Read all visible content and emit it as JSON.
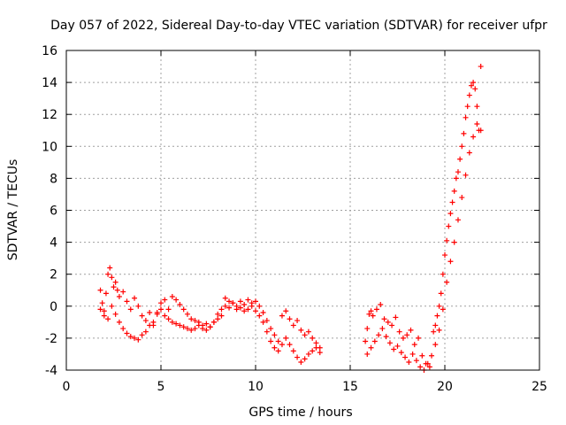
{
  "chart_data": {
    "type": "scatter",
    "title": "Day 057 of 2022, Sidereal Day-to-day VTEC variation (SDTVAR) for receiver ufpr",
    "xlabel": "GPS time / hours",
    "ylabel": "SDTVAR / TECUs",
    "xlim": [
      0,
      25
    ],
    "ylim": [
      -4,
      16
    ],
    "xticks": [
      0,
      5,
      10,
      15,
      20,
      25
    ],
    "yticks": [
      -4,
      -2,
      0,
      2,
      4,
      6,
      8,
      10,
      12,
      14,
      16
    ],
    "grid": true,
    "marker": "+",
    "color": "#ff0000",
    "series": [
      {
        "name": "SDTVAR",
        "x": [
          1.8,
          1.9,
          2.0,
          2.1,
          2.2,
          2.3,
          2.4,
          2.5,
          2.6,
          2.7,
          2.8,
          3.0,
          3.2,
          3.4,
          3.6,
          3.8,
          4.0,
          4.2,
          4.4,
          4.6,
          4.8,
          5.0,
          5.2,
          5.4,
          5.6,
          5.8,
          6.0,
          6.2,
          6.4,
          6.6,
          6.8,
          7.0,
          7.2,
          7.4,
          7.6,
          7.8,
          8.0,
          8.2,
          8.4,
          8.6,
          8.8,
          9.0,
          9.2,
          9.4,
          9.6,
          9.8,
          10.0,
          10.2,
          10.4,
          10.6,
          10.8,
          11.0,
          11.2,
          11.4,
          11.6,
          11.8,
          12.0,
          12.2,
          12.4,
          12.6,
          12.8,
          13.0,
          13.2,
          13.4,
          15.8,
          15.9,
          16.0,
          16.1,
          16.2,
          16.4,
          16.6,
          16.8,
          17.0,
          17.2,
          17.4,
          17.6,
          17.8,
          18.0,
          18.2,
          18.4,
          18.6,
          18.8,
          19.0,
          19.2,
          19.4,
          19.5,
          19.6,
          19.7,
          19.8,
          19.9,
          20.0,
          20.1,
          20.2,
          20.3,
          20.4,
          20.5,
          20.6,
          20.7,
          20.8,
          20.9,
          21.0,
          21.1,
          21.2,
          21.3,
          21.4,
          21.5,
          21.6,
          21.7,
          21.8,
          21.9,
          1.8,
          2.0,
          2.2,
          2.4,
          2.6,
          2.8,
          3.0,
          3.2,
          3.4,
          3.6,
          3.8,
          4.0,
          4.2,
          4.4,
          4.6,
          4.8,
          5.0,
          5.2,
          5.4,
          5.6,
          5.8,
          6.0,
          6.2,
          6.4,
          6.6,
          6.8,
          7.0,
          7.2,
          7.4,
          7.6,
          7.8,
          8.0,
          8.2,
          8.4,
          8.6,
          8.8,
          9.0,
          9.2,
          9.4,
          9.6,
          9.8,
          10.0,
          10.2,
          10.4,
          10.6,
          10.8,
          11.0,
          11.2,
          11.4,
          11.6,
          11.8,
          12.0,
          12.2,
          12.4,
          12.6,
          12.8,
          13.0,
          13.2,
          13.4,
          15.9,
          16.1,
          16.3,
          16.5,
          16.7,
          16.9,
          17.1,
          17.3,
          17.5,
          17.7,
          17.9,
          18.1,
          18.3,
          18.5,
          18.7,
          18.9,
          19.1,
          19.3,
          19.5,
          19.7,
          19.9,
          20.1,
          20.3,
          20.5,
          20.7,
          20.9,
          21.1,
          21.3,
          21.5,
          21.7,
          21.9
        ],
        "y": [
          1.0,
          0.2,
          -0.3,
          0.8,
          2.0,
          2.4,
          1.8,
          1.2,
          1.5,
          1.0,
          0.6,
          0.9,
          0.3,
          -0.2,
          0.5,
          0.0,
          -0.6,
          -0.9,
          -0.4,
          -1.2,
          -0.5,
          0.2,
          0.4,
          -0.2,
          0.6,
          0.4,
          0.1,
          -0.2,
          -0.5,
          -0.8,
          -0.9,
          -1.0,
          -1.2,
          -1.1,
          -1.3,
          -1.0,
          -0.8,
          -0.6,
          0.5,
          0.3,
          0.2,
          0.0,
          0.3,
          0.1,
          0.4,
          0.2,
          0.3,
          0.0,
          -0.4,
          -0.9,
          -1.4,
          -1.8,
          -2.2,
          -0.6,
          -0.3,
          -0.8,
          -1.2,
          -0.9,
          -1.5,
          -1.8,
          -1.6,
          -2.0,
          -2.3,
          -2.6,
          -2.2,
          -1.4,
          -0.5,
          -0.3,
          -0.6,
          -0.2,
          0.1,
          -0.8,
          -1.0,
          -1.2,
          -0.7,
          -1.6,
          -2.0,
          -1.8,
          -1.5,
          -2.4,
          -2.0,
          -3.1,
          -3.6,
          -3.8,
          -1.6,
          -1.2,
          -0.6,
          0.0,
          0.8,
          2.0,
          3.2,
          4.1,
          5.0,
          5.8,
          6.5,
          7.2,
          8.0,
          8.4,
          9.2,
          10.0,
          10.8,
          11.8,
          12.5,
          13.2,
          13.8,
          14.0,
          13.6,
          12.5,
          11.0,
          15.0,
          -0.2,
          -0.6,
          -0.8,
          0.0,
          -0.5,
          -1.0,
          -1.4,
          -1.7,
          -1.9,
          -2.0,
          -2.1,
          -1.8,
          -1.6,
          -1.2,
          -1.0,
          -0.4,
          -0.2,
          -0.6,
          -0.8,
          -1.0,
          -1.1,
          -1.2,
          -1.3,
          -1.4,
          -1.5,
          -1.4,
          -1.2,
          -1.4,
          -1.5,
          -1.3,
          -1.0,
          -0.5,
          -0.2,
          0.0,
          -0.1,
          0.2,
          -0.2,
          -0.1,
          -0.3,
          -0.2,
          0.0,
          -0.3,
          -0.6,
          -1.0,
          -1.6,
          -2.2,
          -2.6,
          -2.8,
          -2.4,
          -2.0,
          -2.4,
          -2.8,
          -3.2,
          -3.5,
          -3.3,
          -3.0,
          -2.8,
          -2.6,
          -2.9,
          -3.0,
          -2.6,
          -2.2,
          -1.8,
          -1.4,
          -1.9,
          -2.3,
          -2.7,
          -2.5,
          -2.9,
          -3.2,
          -3.5,
          -3.0,
          -3.4,
          -3.8,
          -4.0,
          -3.6,
          -3.1,
          -2.4,
          -1.5,
          -0.2,
          1.5,
          2.8,
          4.0,
          5.4,
          6.8,
          8.2,
          9.6,
          10.6,
          11.4,
          11.0
        ]
      }
    ]
  }
}
